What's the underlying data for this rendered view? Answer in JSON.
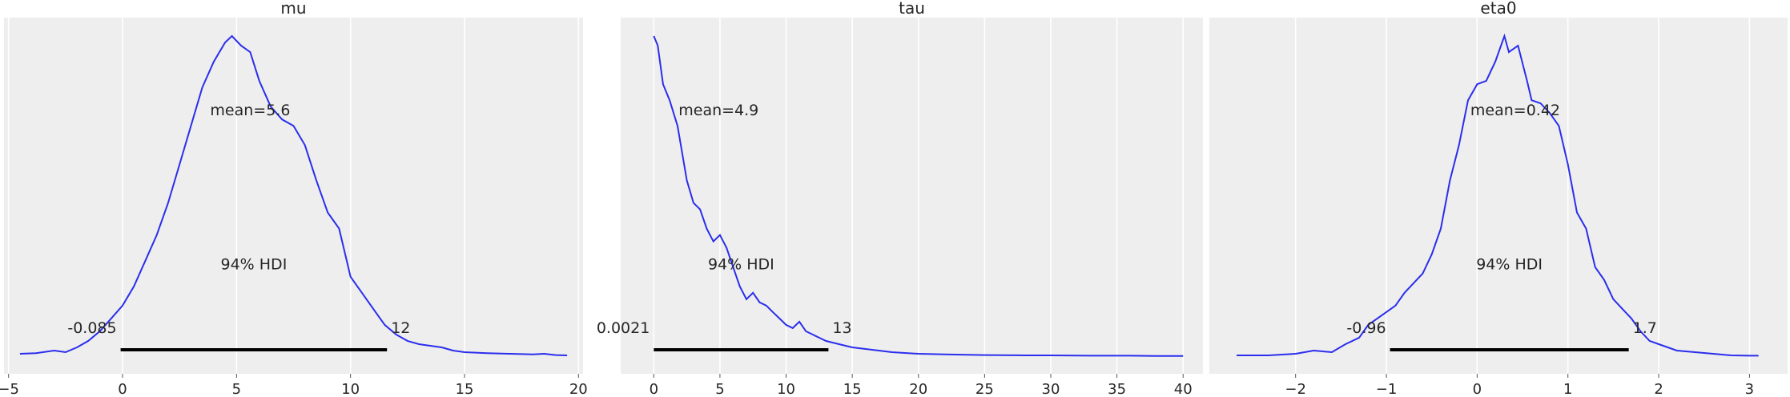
{
  "colors": {
    "background": "#EEEEEE",
    "grid": "#FFFFFF",
    "curve": "#2A2EEC",
    "hdi_bar": "#000000",
    "text": "#262626"
  },
  "chart_data": [
    {
      "type": "line",
      "title": "mu",
      "xlim": [
        -5.2,
        20.2
      ],
      "xticks": [
        -5,
        0,
        5,
        10,
        15,
        20
      ],
      "xtick_labels": [
        "−5",
        "0",
        "5",
        "10",
        "15",
        "20"
      ],
      "grid": "vertical",
      "series": [
        {
          "x": [
            -4.5,
            -3.8,
            -3.0,
            -2.5,
            -2.0,
            -1.5,
            -1.0,
            -0.5,
            0.0,
            0.5,
            1.0,
            1.5,
            2.0,
            2.5,
            3.0,
            3.5,
            4.0,
            4.5,
            4.8,
            5.2,
            5.6,
            6.0,
            6.5,
            7.0,
            7.5,
            8.0,
            8.5,
            9.0,
            9.5,
            10.0,
            10.5,
            11.0,
            11.5,
            12.0,
            12.5,
            13.0,
            13.5,
            14.0,
            14.5,
            15.0,
            16.0,
            17.0,
            18.0,
            18.5,
            19.0,
            19.5
          ],
          "y": [
            0.01,
            0.012,
            0.02,
            0.015,
            0.03,
            0.05,
            0.08,
            0.12,
            0.16,
            0.22,
            0.3,
            0.38,
            0.48,
            0.6,
            0.72,
            0.84,
            0.92,
            0.98,
            1.0,
            0.97,
            0.95,
            0.86,
            0.78,
            0.74,
            0.72,
            0.66,
            0.55,
            0.45,
            0.4,
            0.25,
            0.2,
            0.15,
            0.1,
            0.07,
            0.05,
            0.04,
            0.035,
            0.03,
            0.02,
            0.015,
            0.012,
            0.01,
            0.008,
            0.01,
            0.006,
            0.005
          ]
        }
      ],
      "mean_label": "mean=5.6",
      "hdi_label": "94% HDI",
      "hdi": [
        -0.085,
        11.6
      ],
      "hdi_low_label": "-0.085",
      "hdi_high_label": "12",
      "layout": {
        "mean_y": 0.77,
        "hdi_y": 0.29
      }
    },
    {
      "type": "line",
      "title": "tau",
      "xlim": [
        -2.5,
        41.5
      ],
      "xticks": [
        0,
        5,
        10,
        15,
        20,
        25,
        30,
        35,
        40
      ],
      "xtick_labels": [
        "0",
        "5",
        "10",
        "15",
        "20",
        "25",
        "30",
        "35",
        "40"
      ],
      "grid": "vertical",
      "series": [
        {
          "x": [
            0.0,
            0.3,
            0.7,
            1.2,
            1.8,
            2.5,
            3.0,
            3.5,
            4.0,
            4.5,
            5.0,
            5.5,
            6.0,
            6.5,
            7.0,
            7.5,
            8.0,
            8.5,
            9.0,
            9.5,
            10.0,
            10.5,
            11.0,
            11.5,
            12.0,
            12.5,
            13.0,
            13.5,
            14.0,
            15.0,
            16.0,
            17.0,
            18.0,
            20.0,
            22.0,
            25.0,
            28.0,
            30.0,
            33.0,
            36.0,
            38.0,
            40.0
          ],
          "y": [
            1.0,
            0.97,
            0.85,
            0.8,
            0.72,
            0.55,
            0.48,
            0.46,
            0.4,
            0.36,
            0.38,
            0.34,
            0.28,
            0.22,
            0.18,
            0.2,
            0.17,
            0.16,
            0.14,
            0.12,
            0.1,
            0.09,
            0.11,
            0.08,
            0.07,
            0.06,
            0.05,
            0.045,
            0.04,
            0.03,
            0.025,
            0.02,
            0.015,
            0.01,
            0.008,
            0.006,
            0.005,
            0.005,
            0.004,
            0.004,
            0.003,
            0.003
          ]
        }
      ],
      "mean_label": "mean=4.9",
      "hdi_label": "94% HDI",
      "hdi": [
        0.0021,
        13.2
      ],
      "hdi_low_label": "0.0021",
      "hdi_high_label": "13",
      "layout": {
        "mean_y": 0.77,
        "hdi_y": 0.29
      }
    },
    {
      "type": "line",
      "title": "eta0",
      "xlim": [
        -2.95,
        3.42
      ],
      "xticks": [
        -2,
        -1,
        0,
        1,
        2,
        3
      ],
      "xtick_labels": [
        "−2",
        "−1",
        "0",
        "1",
        "2",
        "3"
      ],
      "grid": "vertical",
      "series": [
        {
          "x": [
            -2.65,
            -2.3,
            -2.0,
            -1.8,
            -1.6,
            -1.45,
            -1.3,
            -1.2,
            -1.0,
            -0.9,
            -0.8,
            -0.6,
            -0.5,
            -0.4,
            -0.3,
            -0.2,
            -0.1,
            0.0,
            0.1,
            0.2,
            0.3,
            0.35,
            0.45,
            0.55,
            0.6,
            0.7,
            0.8,
            0.9,
            1.0,
            1.1,
            1.2,
            1.3,
            1.4,
            1.5,
            1.6,
            1.7,
            1.8,
            1.9,
            2.0,
            2.2,
            2.4,
            2.6,
            2.8,
            3.0,
            3.1
          ],
          "y": [
            0.005,
            0.005,
            0.01,
            0.02,
            0.015,
            0.04,
            0.06,
            0.1,
            0.14,
            0.16,
            0.2,
            0.26,
            0.32,
            0.4,
            0.55,
            0.66,
            0.8,
            0.85,
            0.86,
            0.92,
            1.0,
            0.95,
            0.97,
            0.86,
            0.8,
            0.79,
            0.76,
            0.72,
            0.6,
            0.45,
            0.4,
            0.28,
            0.24,
            0.18,
            0.15,
            0.12,
            0.08,
            0.05,
            0.04,
            0.02,
            0.015,
            0.01,
            0.005,
            0.004,
            0.004
          ]
        }
      ],
      "mean_label": "mean=0.42",
      "hdi_label": "94% HDI",
      "hdi": [
        -0.96,
        1.67
      ],
      "hdi_low_label": "-0.96",
      "hdi_high_label": "1.7",
      "layout": {
        "mean_y": 0.77,
        "hdi_y": 0.29
      }
    }
  ]
}
